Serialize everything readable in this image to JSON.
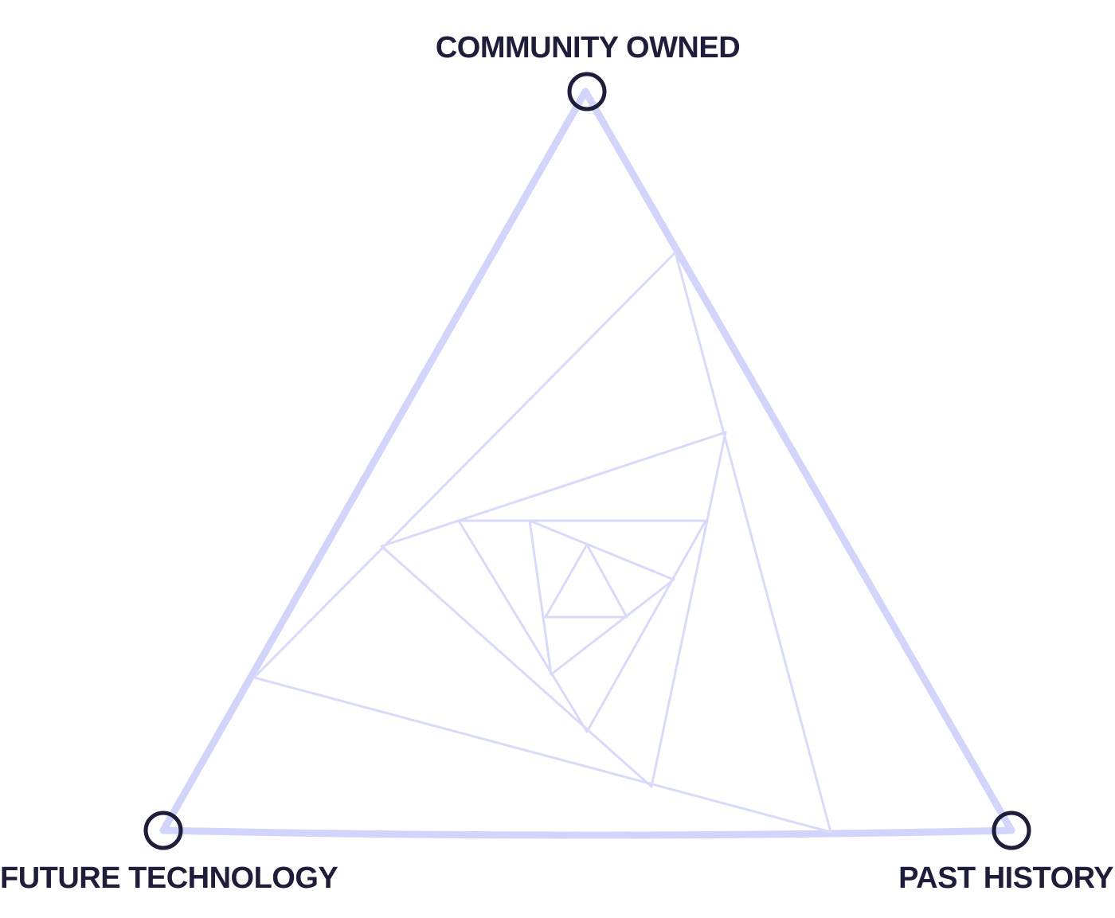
{
  "diagram": {
    "labels": {
      "top": "COMMUNITY OWNED",
      "left": "FUTURE TECHNOLOGY",
      "right": "PAST HISTORY"
    },
    "colors": {
      "label_text": "#1e1d3a",
      "node_ring": "#1e1d3a",
      "outer_triangle": "#d3d4fb",
      "spiral_lines": "#d8daf9",
      "background": "#ffffff"
    }
  }
}
